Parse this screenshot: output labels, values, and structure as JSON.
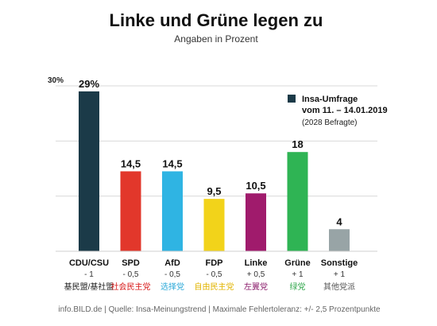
{
  "chart_data": {
    "type": "bar",
    "title": "Linke und Grüne legen zu",
    "subtitle": "Angaben in Prozent",
    "categories": [
      "CDU/CSU",
      "SPD",
      "AfD",
      "FDP",
      "Linke",
      "Grüne",
      "Sonstige"
    ],
    "values": [
      29,
      14.5,
      14.5,
      9.5,
      10.5,
      18,
      4
    ],
    "value_labels": [
      "29%",
      "14,5",
      "14,5",
      "9,5",
      "10,5",
      "18",
      "4"
    ],
    "changes": [
      "- 1",
      "- 0,5",
      "- 0,5",
      "- 0,5",
      "+ 0,5",
      "+ 1",
      "+ 1"
    ],
    "chinese_labels": [
      "基民盟/基社盟",
      "社会民主党",
      "选择党",
      "自由民主党",
      "左翼党",
      "绿党",
      "其他党派"
    ],
    "colors": [
      "#1b3a48",
      "#e2372b",
      "#2fb4e3",
      "#f2d31a",
      "#a01b6c",
      "#2fb454",
      "#98a4a6"
    ],
    "chinese_label_colors": [
      "#222222",
      "#d81b1b",
      "#2aa8d8",
      "#e2b400",
      "#8a1a6a",
      "#2fa64a",
      "#555555"
    ],
    "ylim": [
      0,
      30
    ],
    "ytick_label": "30%",
    "grid": true,
    "legend": {
      "position": "top-right",
      "color": "#1b3a48",
      "line1": "Insa-Umfrage",
      "line2": "vom 11. – 14.01.2019",
      "line3": "(2028 Befragte)"
    }
  },
  "footer": "info.BILD.de | Quelle: Insa-Meinungstrend | Maximale Fehlertoleranz: +/- 2,5 Prozentpunkte"
}
